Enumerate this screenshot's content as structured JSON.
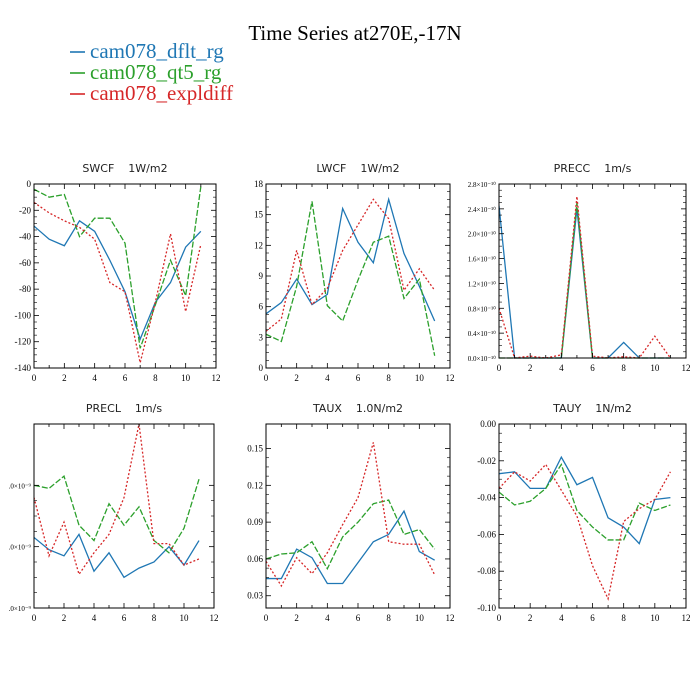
{
  "figure": {
    "title": "Time Series at270E,-17N",
    "legend": [
      {
        "label": "cam078_dflt_rg",
        "color": "#1f77b4",
        "dash": "solid"
      },
      {
        "label": "cam078_qt5_rg",
        "color": "#2ca02c",
        "dash": "dash"
      },
      {
        "label": "cam078_expldiff",
        "color": "#d62728",
        "dash": "dot"
      }
    ]
  },
  "chart_data": [
    {
      "type": "line",
      "title": "SWCF    1W/m2",
      "x": [
        0,
        1,
        2,
        3,
        4,
        5,
        6,
        7,
        8,
        9,
        10,
        11
      ],
      "xlim": [
        0,
        12
      ],
      "xticks": [
        0,
        2,
        4,
        6,
        8,
        10,
        12
      ],
      "ylim": [
        -140,
        0
      ],
      "yticks": [
        0,
        -20,
        -40,
        -60,
        -80,
        -100,
        -120,
        -140
      ],
      "ytick_labels": [
        "0",
        "-20",
        "-40",
        "-60",
        "-80",
        "-100",
        "-120",
        "-140"
      ],
      "series": [
        {
          "name": "cam078_dflt_rg",
          "values": [
            -32,
            -42,
            -47,
            -28,
            -36,
            -58,
            -82,
            -118,
            -90,
            -75,
            -48,
            -36
          ]
        },
        {
          "name": "cam078_qt5_rg",
          "values": [
            -4,
            -10,
            -8,
            -40,
            -26,
            -26,
            -45,
            -125,
            -92,
            -58,
            -85,
            -2
          ]
        },
        {
          "name": "cam078_expldiff",
          "values": [
            -14,
            -22,
            -28,
            -33,
            -42,
            -75,
            -82,
            -136,
            -90,
            -38,
            -97,
            -46
          ]
        }
      ]
    },
    {
      "type": "line",
      "title": "LWCF    1W/m2",
      "x": [
        0,
        1,
        2,
        3,
        4,
        5,
        6,
        7,
        8,
        9,
        10,
        11
      ],
      "xlim": [
        0,
        12
      ],
      "xticks": [
        0,
        2,
        4,
        6,
        8,
        10,
        12
      ],
      "ylim": [
        0,
        18
      ],
      "yticks": [
        0,
        3,
        6,
        9,
        12,
        15,
        18
      ],
      "ytick_labels": [
        "0",
        "3",
        "6",
        "9",
        "12",
        "15",
        "18"
      ],
      "series": [
        {
          "name": "cam078_dflt_rg",
          "values": [
            5.3,
            6.4,
            8.7,
            6.2,
            7.2,
            15.6,
            12.3,
            10.3,
            16.5,
            11.2,
            8.0,
            4.6
          ]
        },
        {
          "name": "cam078_qt5_rg",
          "values": [
            3.3,
            2.6,
            8.0,
            16.3,
            6.1,
            4.6,
            8.6,
            12.3,
            12.9,
            6.8,
            8.7,
            1.2
          ]
        },
        {
          "name": "cam078_expldiff",
          "values": [
            3.6,
            4.8,
            11.5,
            6.2,
            7.8,
            11.5,
            14.0,
            16.5,
            14.6,
            7.6,
            9.7,
            7.6
          ]
        }
      ]
    },
    {
      "type": "line",
      "title": "PRECC    1m/s",
      "x": [
        0,
        1,
        2,
        3,
        4,
        5,
        6,
        7,
        8,
        9,
        10,
        11
      ],
      "xlim": [
        0,
        12
      ],
      "xticks": [
        0,
        2,
        4,
        6,
        8,
        10,
        12
      ],
      "ylim": [
        0,
        2.8e-10
      ],
      "yticks": [
        0,
        4e-11,
        8e-11,
        1.2e-10,
        1.6e-10,
        2e-10,
        2.4e-10,
        2.8e-10
      ],
      "ytick_labels": [
        "0.0×10⁻¹⁰",
        "0.4×10⁻¹⁰",
        "0.8×10⁻¹⁰",
        "1.2×10⁻¹⁰",
        "1.6×10⁻¹⁰",
        "2.0×10⁻¹⁰",
        "2.4×10⁻¹⁰",
        "2.8×10⁻¹⁰"
      ],
      "series": [
        {
          "name": "cam078_dflt_rg",
          "values": [
            2.45e-10,
            0,
            0,
            0,
            0,
            2.4e-10,
            0,
            0,
            2.5e-11,
            0,
            0,
            0
          ]
        },
        {
          "name": "cam078_qt5_rg",
          "values": [
            0,
            0,
            0,
            0,
            0,
            2.5e-10,
            0,
            0,
            0,
            0,
            0,
            0
          ]
        },
        {
          "name": "cam078_expldiff",
          "values": [
            8e-11,
            0,
            3e-12,
            0,
            5e-12,
            2.6e-10,
            3e-12,
            0,
            2e-12,
            0,
            3.5e-11,
            0
          ]
        }
      ]
    },
    {
      "type": "line",
      "title": "PRECL    1m/s",
      "x": [
        0,
        1,
        2,
        3,
        4,
        5,
        6,
        7,
        8,
        9,
        10,
        11
      ],
      "xlim": [
        0,
        12
      ],
      "xticks": [
        0,
        2,
        4,
        6,
        8,
        10,
        12
      ],
      "ylim": [
        2e-09,
        8e-09
      ],
      "yticks": [
        2e-09,
        4e-09,
        6e-09
      ],
      "ytick_labels": [
        ".0×10⁻⁹",
        ".0×10⁻⁹",
        ".0×10⁻⁹"
      ],
      "series": [
        {
          "name": "cam078_dflt_rg",
          "values": [
            4.3e-09,
            3.9e-09,
            3.7e-09,
            4.4e-09,
            3.2e-09,
            3.8e-09,
            3e-09,
            3.3e-09,
            3.5e-09,
            4e-09,
            3.4e-09,
            4.2e-09
          ]
        },
        {
          "name": "cam078_qt5_rg",
          "values": [
            6e-09,
            5.9e-09,
            6.3e-09,
            4.7e-09,
            4.2e-09,
            5.4e-09,
            4.7e-09,
            5.3e-09,
            4.2e-09,
            3.8e-09,
            4.6e-09,
            6.2e-09
          ]
        },
        {
          "name": "cam078_expldiff",
          "values": [
            5.6e-09,
            3.7e-09,
            4.8e-09,
            3.1e-09,
            3.8e-09,
            4.4e-09,
            5.6e-09,
            8e-09,
            4.1e-09,
            4.1e-09,
            3.4e-09,
            3.6e-09
          ]
        }
      ]
    },
    {
      "type": "line",
      "title": "TAUX    1.0N/m2",
      "x": [
        0,
        1,
        2,
        3,
        4,
        5,
        6,
        7,
        8,
        9,
        10,
        11
      ],
      "xlim": [
        0,
        12
      ],
      "xticks": [
        0,
        2,
        4,
        6,
        8,
        10,
        12
      ],
      "ylim": [
        0.02,
        0.17
      ],
      "yticks": [
        0.03,
        0.06,
        0.09,
        0.12,
        0.15
      ],
      "ytick_labels": [
        "0.03",
        "0.06",
        "0.09",
        "0.12",
        "0.15"
      ],
      "series": [
        {
          "name": "cam078_dflt_rg",
          "values": [
            0.044,
            0.044,
            0.068,
            0.061,
            0.04,
            0.04,
            0.057,
            0.074,
            0.08,
            0.099,
            0.066,
            0.059
          ]
        },
        {
          "name": "cam078_qt5_rg",
          "values": [
            0.06,
            0.064,
            0.065,
            0.074,
            0.052,
            0.078,
            0.09,
            0.105,
            0.108,
            0.08,
            0.084,
            0.068
          ]
        },
        {
          "name": "cam078_expldiff",
          "values": [
            0.058,
            0.038,
            0.061,
            0.048,
            0.065,
            0.088,
            0.11,
            0.155,
            0.074,
            0.072,
            0.072,
            0.047
          ]
        }
      ]
    },
    {
      "type": "line",
      "title": "TAUY    1N/m2",
      "x": [
        0,
        1,
        2,
        3,
        4,
        5,
        6,
        7,
        8,
        9,
        10,
        11
      ],
      "xlim": [
        0,
        12
      ],
      "xticks": [
        0,
        2,
        4,
        6,
        8,
        10,
        12
      ],
      "ylim": [
        -0.1,
        0.0
      ],
      "yticks": [
        0.0,
        -0.02,
        -0.04,
        -0.06,
        -0.08,
        -0.1
      ],
      "ytick_labels": [
        "0.00",
        "-0.02",
        "-0.04",
        "-0.06",
        "-0.08",
        "-0.10"
      ],
      "series": [
        {
          "name": "cam078_dflt_rg",
          "values": [
            -0.027,
            -0.026,
            -0.035,
            -0.035,
            -0.018,
            -0.033,
            -0.029,
            -0.051,
            -0.056,
            -0.065,
            -0.041,
            -0.04
          ]
        },
        {
          "name": "cam078_qt5_rg",
          "values": [
            -0.037,
            -0.044,
            -0.042,
            -0.035,
            -0.022,
            -0.047,
            -0.056,
            -0.063,
            -0.063,
            -0.043,
            -0.047,
            -0.044
          ]
        },
        {
          "name": "cam078_expldiff",
          "values": [
            -0.035,
            -0.026,
            -0.031,
            -0.022,
            -0.036,
            -0.05,
            -0.077,
            -0.095,
            -0.053,
            -0.046,
            -0.041,
            -0.026
          ]
        }
      ]
    }
  ]
}
